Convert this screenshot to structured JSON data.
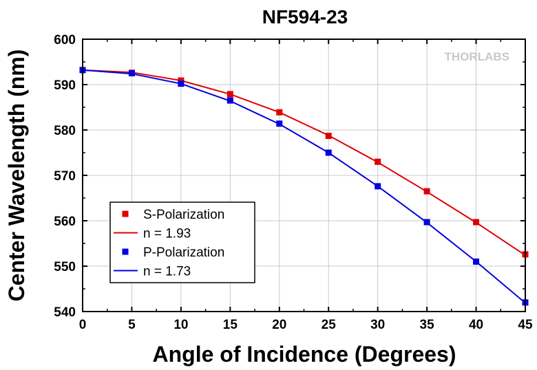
{
  "chart_data": {
    "type": "line",
    "title": "NF594-23",
    "xlabel": "Angle of Incidence (Degrees)",
    "ylabel": "Center Wavelength (nm)",
    "xlim": [
      0,
      45
    ],
    "ylim": [
      540,
      600
    ],
    "x_ticks": [
      0,
      5,
      10,
      15,
      20,
      25,
      30,
      35,
      40,
      45
    ],
    "y_ticks": [
      540,
      550,
      560,
      570,
      580,
      590,
      600
    ],
    "grid": true,
    "legend_position": "bottom-left",
    "watermark": "THORLABS",
    "x": [
      0,
      5,
      10,
      15,
      20,
      25,
      30,
      35,
      40,
      45
    ],
    "series": [
      {
        "name": "S-Polarization",
        "kind": "markers",
        "color": "#e00000",
        "values": [
          593.2,
          592.6,
          590.9,
          587.9,
          583.9,
          578.7,
          573.0,
          566.5,
          559.7,
          552.6
        ]
      },
      {
        "name": "n = 1.93",
        "kind": "line",
        "color": "#e00000",
        "values": [
          593.2,
          592.7,
          590.9,
          587.9,
          583.9,
          578.8,
          572.9,
          566.4,
          559.6,
          552.4
        ]
      },
      {
        "name": "P-Polarization",
        "kind": "markers",
        "color": "#0000e0",
        "values": [
          593.2,
          592.5,
          590.2,
          586.5,
          581.4,
          575.0,
          567.6,
          559.7,
          551.0,
          542.0
        ]
      },
      {
        "name": "n = 1.73",
        "kind": "line",
        "color": "#0000e0",
        "values": [
          593.2,
          592.4,
          590.2,
          586.4,
          581.3,
          575.0,
          567.6,
          559.6,
          551.0,
          541.9
        ]
      }
    ]
  }
}
